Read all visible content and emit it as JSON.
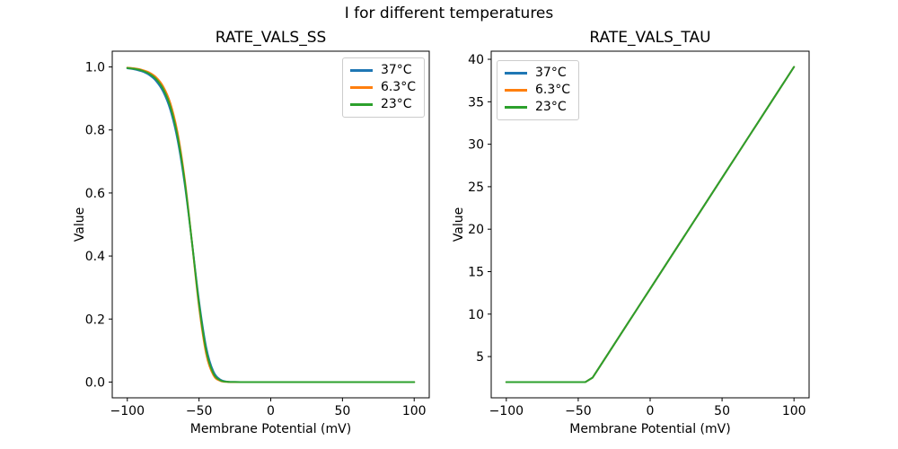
{
  "figure": {
    "suptitle": "I for different temperatures",
    "background_color": "#ffffff",
    "text_color": "#000000"
  },
  "palette": {
    "blue": "#1f77b4",
    "orange": "#ff7f0e",
    "green": "#2ca02c",
    "legend_border": "#cccccc",
    "axes_edge": "#000000"
  },
  "chart_data": [
    {
      "type": "line",
      "title": "RATE_VALS_SS",
      "xlabel": "Membrane Potential (mV)",
      "ylabel": "Value",
      "xlim": [
        -110.5,
        110.5
      ],
      "ylim": [
        -0.05,
        1.05
      ],
      "xticks": [
        -100,
        -50,
        0,
        50,
        100
      ],
      "xtick_labels": [
        "−100",
        "−50",
        "0",
        "50",
        "100"
      ],
      "yticks": [
        0.0,
        0.2,
        0.4,
        0.6,
        0.8,
        1.0
      ],
      "ytick_labels": [
        "0.0",
        "0.2",
        "0.4",
        "0.6",
        "0.8",
        "1.0"
      ],
      "grid": false,
      "smooth": true,
      "legend_position": "upper right",
      "x": [
        -100,
        -95,
        -90,
        -85,
        -80,
        -75,
        -70,
        -65,
        -60,
        -55,
        -50,
        -45,
        -40,
        -35,
        -30,
        -25,
        -20,
        -15,
        -10,
        -5,
        0,
        5,
        10,
        15,
        20,
        25,
        30,
        35,
        40,
        45,
        50,
        55,
        60,
        65,
        70,
        75,
        80,
        85,
        90,
        95,
        100
      ],
      "series": [
        {
          "name": "37°C",
          "color": "#1f77b4",
          "values": [
            0.9958,
            0.9924,
            0.9863,
            0.9753,
            0.9558,
            0.9215,
            0.8635,
            0.7692,
            0.6285,
            0.4468,
            0.2569,
            0.1106,
            0.0339,
            0.0074,
            0.0012,
            0.0002,
            0,
            0,
            0,
            0,
            0,
            0,
            0,
            0,
            0,
            0,
            0,
            0,
            0,
            0,
            0,
            0,
            0,
            0,
            0,
            0,
            0,
            0,
            0,
            0,
            0
          ]
        },
        {
          "name": "6.3°C",
          "color": "#ff7f0e",
          "values": [
            0.9976,
            0.9954,
            0.9911,
            0.983,
            0.9674,
            0.9382,
            0.8851,
            0.7926,
            0.6456,
            0.4468,
            0.2386,
            0.0888,
            0.0217,
            0.0035,
            0.0004,
            0,
            0,
            0,
            0,
            0,
            0,
            0,
            0,
            0,
            0,
            0,
            0,
            0,
            0,
            0,
            0,
            0,
            0,
            0,
            0,
            0,
            0,
            0,
            0,
            0,
            0
          ]
        },
        {
          "name": "23°C",
          "color": "#2ca02c",
          "values": [
            0.9968,
            0.994,
            0.9889,
            0.9793,
            0.9618,
            0.9299,
            0.8741,
            0.7805,
            0.6367,
            0.4468,
            0.2481,
            0.0999,
            0.0275,
            0.0052,
            0.0007,
            0.0001,
            0,
            0,
            0,
            0,
            0,
            0,
            0,
            0,
            0,
            0,
            0,
            0,
            0,
            0,
            0,
            0,
            0,
            0,
            0,
            0,
            0,
            0,
            0,
            0,
            0
          ]
        }
      ]
    },
    {
      "type": "line",
      "title": "RATE_VALS_TAU",
      "xlabel": "Membrane Potential (mV)",
      "ylabel": "Value",
      "xlim": [
        -110.5,
        110.5
      ],
      "ylim": [
        0.145,
        40.955
      ],
      "xticks": [
        -100,
        -50,
        0,
        50,
        100
      ],
      "xtick_labels": [
        "−100",
        "−50",
        "0",
        "50",
        "100"
      ],
      "yticks": [
        5,
        10,
        15,
        20,
        25,
        30,
        35,
        40
      ],
      "ytick_labels": [
        "5",
        "10",
        "15",
        "20",
        "25",
        "30",
        "35",
        "40"
      ],
      "grid": false,
      "smooth": false,
      "legend_position": "upper left",
      "x": [
        -100,
        -95,
        -90,
        -85,
        -80,
        -75,
        -70,
        -65,
        -60,
        -55,
        -50,
        -45,
        -40,
        -35,
        -30,
        -25,
        -20,
        -15,
        -10,
        -5,
        0,
        5,
        10,
        15,
        20,
        25,
        30,
        35,
        40,
        45,
        50,
        55,
        60,
        65,
        70,
        75,
        80,
        85,
        90,
        95,
        100
      ],
      "series": [
        {
          "name": "37°C",
          "color": "#1f77b4",
          "values": [
            2,
            2,
            2,
            2,
            2,
            2,
            2,
            2,
            2,
            2,
            2,
            2,
            2.523,
            3.829,
            5.136,
            6.442,
            7.749,
            9.055,
            10.362,
            11.668,
            12.975,
            14.281,
            15.588,
            16.894,
            18.201,
            19.507,
            20.814,
            22.12,
            23.427,
            24.733,
            26.04,
            27.346,
            28.653,
            29.959,
            31.266,
            32.572,
            33.879,
            35.185,
            36.492,
            37.798,
            39.105
          ]
        },
        {
          "name": "6.3°C",
          "color": "#ff7f0e",
          "values": [
            2,
            2,
            2,
            2,
            2,
            2,
            2,
            2,
            2,
            2,
            2,
            2,
            2.523,
            3.829,
            5.136,
            6.442,
            7.749,
            9.055,
            10.362,
            11.668,
            12.975,
            14.281,
            15.588,
            16.894,
            18.201,
            19.507,
            20.814,
            22.12,
            23.427,
            24.733,
            26.04,
            27.346,
            28.653,
            29.959,
            31.266,
            32.572,
            33.879,
            35.185,
            36.492,
            37.798,
            39.105
          ]
        },
        {
          "name": "23°C",
          "color": "#2ca02c",
          "values": [
            2,
            2,
            2,
            2,
            2,
            2,
            2,
            2,
            2,
            2,
            2,
            2,
            2.523,
            3.829,
            5.136,
            6.442,
            7.749,
            9.055,
            10.362,
            11.668,
            12.975,
            14.281,
            15.588,
            16.894,
            18.201,
            19.507,
            20.814,
            22.12,
            23.427,
            24.733,
            26.04,
            27.346,
            28.653,
            29.959,
            31.266,
            32.572,
            33.879,
            35.185,
            36.492,
            37.798,
            39.105
          ]
        }
      ]
    }
  ]
}
